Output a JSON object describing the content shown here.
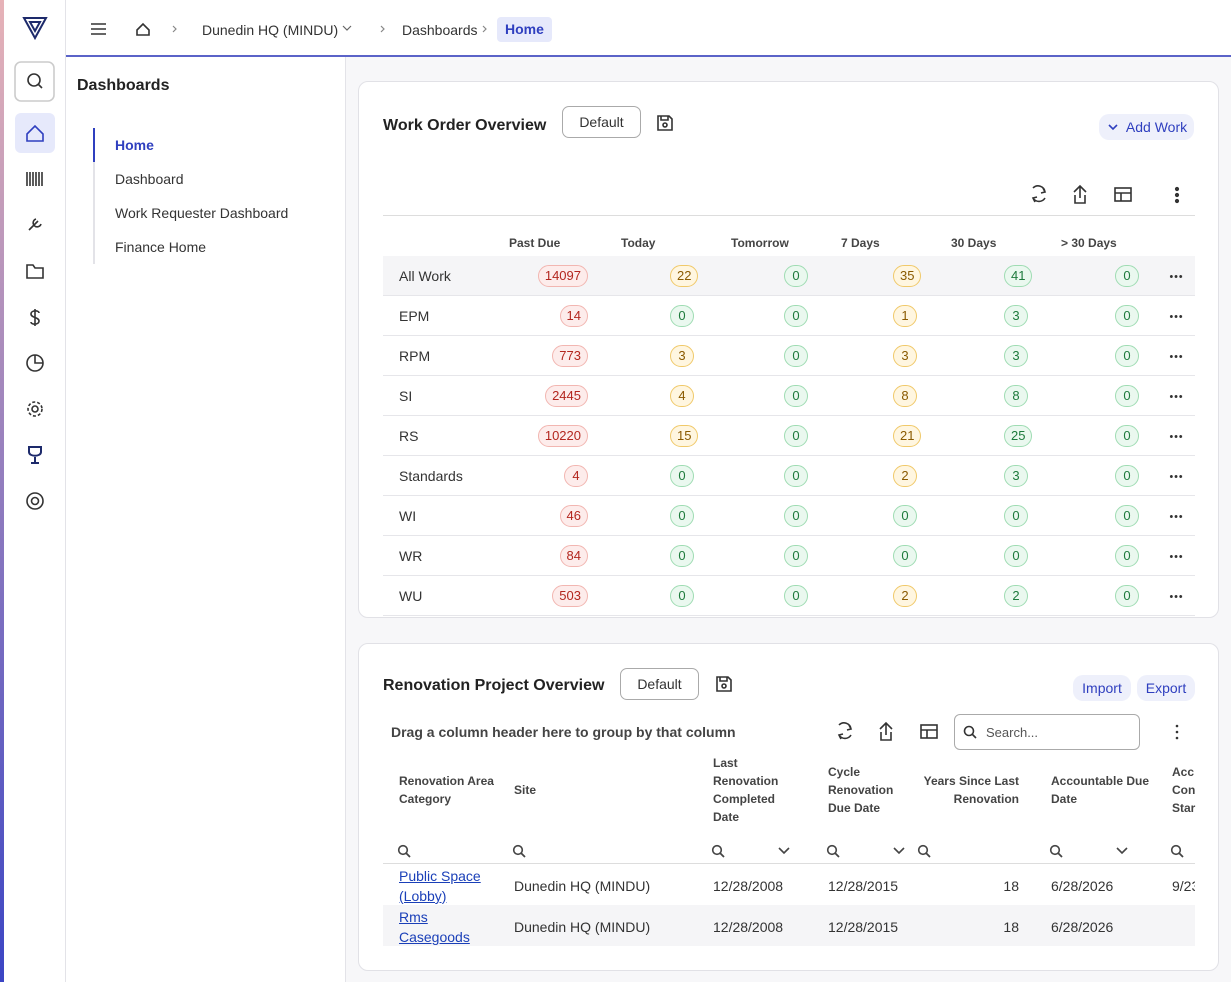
{
  "breadcrumb": {
    "site": "Dunedin HQ (MINDU)",
    "section": "Dashboards",
    "current": "Home"
  },
  "sidebar": {
    "title": "Dashboards",
    "items": [
      "Home",
      "Dashboard",
      "Work Requester Dashboard",
      "Finance Home"
    ]
  },
  "work_order": {
    "title": "Work Order Overview",
    "view": "Default",
    "add": "Add Work",
    "columns": [
      "Past Due",
      "Today",
      "Tomorrow",
      "7 Days",
      "30 Days",
      "> 30 Days"
    ],
    "rows": [
      {
        "label": "All Work",
        "values": [
          14097,
          22,
          0,
          35,
          41,
          0
        ]
      },
      {
        "label": "EPM",
        "values": [
          14,
          0,
          0,
          1,
          3,
          0
        ]
      },
      {
        "label": "RPM",
        "values": [
          773,
          3,
          0,
          3,
          3,
          0
        ]
      },
      {
        "label": "SI",
        "values": [
          2445,
          4,
          0,
          8,
          8,
          0
        ]
      },
      {
        "label": "RS",
        "values": [
          10220,
          15,
          0,
          21,
          25,
          0
        ]
      },
      {
        "label": "Standards",
        "values": [
          4,
          0,
          0,
          2,
          3,
          0
        ]
      },
      {
        "label": "WI",
        "values": [
          46,
          0,
          0,
          0,
          0,
          0
        ]
      },
      {
        "label": "WR",
        "values": [
          84,
          0,
          0,
          0,
          0,
          0
        ]
      },
      {
        "label": "WU",
        "values": [
          503,
          0,
          0,
          2,
          2,
          0
        ]
      }
    ]
  },
  "renovation": {
    "title": "Renovation Project Overview",
    "view": "Default",
    "import": "Import",
    "export": "Export",
    "group_hint": "Drag a column header here to group by that column",
    "search": "Search...",
    "columns": [
      "Renovation Area Category",
      "Site",
      "Last Renovation Completed Date",
      "Cycle Renovation Due Date",
      "Years Since Last Renovation",
      "Accountable Due Date",
      "Acc Con Star"
    ],
    "rows": [
      [
        "Public Space (Lobby)",
        "Dunedin HQ (MINDU)",
        "12/28/2008",
        "12/28/2015",
        18,
        "6/28/2026",
        "9/23"
      ],
      [
        "Rms Casegoods",
        "Dunedin HQ (MINDU)",
        "12/28/2008",
        "12/28/2015",
        18,
        "6/28/2026",
        null
      ]
    ]
  }
}
